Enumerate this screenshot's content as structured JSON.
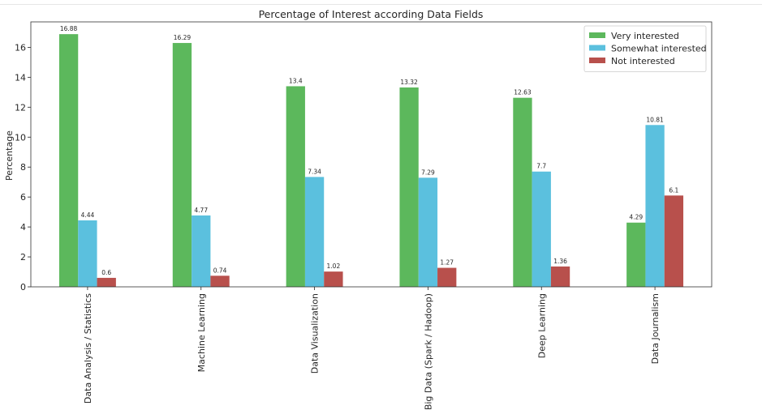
{
  "chart_data": {
    "type": "bar",
    "title": "Percentage of Interest according Data Fields",
    "xlabel": "",
    "ylabel": "Percentage",
    "ylim": [
      0,
      17.7
    ],
    "yticks": [
      0,
      2,
      4,
      6,
      8,
      10,
      12,
      14,
      16
    ],
    "grid": false,
    "legend_position": "top-right",
    "categories": [
      "Data Analysis / Statistics",
      "Machine Learning",
      "Data Visualization",
      "Big Data (Spark / Hadoop)",
      "Deep Learning",
      "Data Journalism"
    ],
    "series": [
      {
        "name": "Very interested",
        "color": "#5cb85c",
        "values": [
          16.88,
          16.29,
          13.4,
          13.32,
          12.63,
          4.29
        ]
      },
      {
        "name": "Somewhat interested",
        "color": "#5bc0de",
        "values": [
          4.44,
          4.77,
          7.34,
          7.29,
          7.7,
          10.81
        ]
      },
      {
        "name": "Not interested",
        "color": "#b8504c",
        "values": [
          0.6,
          0.74,
          1.02,
          1.27,
          1.36,
          6.1
        ]
      }
    ]
  }
}
